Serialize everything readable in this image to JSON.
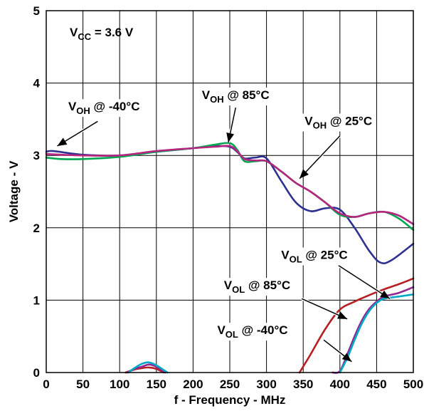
{
  "chart_data": {
    "type": "line",
    "xlabel": "f - Frequency - MHz",
    "ylabel": "Voltage - V",
    "xlim": [
      0,
      500
    ],
    "ylim": [
      0,
      5
    ],
    "x_ticks": [
      "0",
      "50",
      "100",
      "150",
      "200",
      "250",
      "300",
      "350",
      "400",
      "450",
      "500"
    ],
    "y_ticks": [
      "0",
      "1",
      "2",
      "3",
      "4",
      "5"
    ],
    "grid": true,
    "condition": {
      "prefix": "V",
      "sub": "CC",
      "suffix": " = 3.6 V"
    },
    "series": [
      {
        "name": "VOH @ -40°C",
        "color": "#2E3192",
        "x": [
          0,
          10,
          50,
          100,
          150,
          200,
          230,
          250,
          260,
          270,
          285,
          300,
          320,
          340,
          360,
          380,
          400,
          420,
          440,
          455,
          470,
          500
        ],
        "y": [
          3.05,
          3.06,
          3.01,
          3.0,
          3.05,
          3.1,
          3.13,
          3.12,
          3.05,
          2.96,
          2.97,
          2.96,
          2.65,
          2.35,
          2.23,
          2.27,
          2.25,
          2.0,
          1.68,
          1.52,
          1.55,
          1.78
        ]
      },
      {
        "name": "VOH @ 85°C",
        "color": "#00A651",
        "x": [
          0,
          20,
          50,
          100,
          150,
          200,
          230,
          250,
          260,
          270,
          285,
          300,
          320,
          340,
          360,
          380,
          400,
          420,
          440,
          460,
          480,
          500
        ],
        "y": [
          2.97,
          2.95,
          2.95,
          2.98,
          3.05,
          3.1,
          3.15,
          3.17,
          3.08,
          2.92,
          2.92,
          2.92,
          2.78,
          2.62,
          2.5,
          2.35,
          2.18,
          2.15,
          2.2,
          2.22,
          2.13,
          1.97
        ]
      },
      {
        "name": "VOH @ 25°C",
        "color": "#B5267E",
        "x": [
          0,
          20,
          50,
          100,
          150,
          200,
          230,
          250,
          260,
          270,
          285,
          300,
          320,
          340,
          360,
          380,
          400,
          420,
          440,
          460,
          480,
          500
        ],
        "y": [
          3.02,
          3.01,
          3.0,
          3.0,
          3.06,
          3.1,
          3.12,
          3.13,
          3.06,
          2.95,
          2.93,
          2.92,
          2.78,
          2.62,
          2.5,
          2.35,
          2.2,
          2.15,
          2.2,
          2.22,
          2.17,
          2.05
        ]
      },
      {
        "name": "VOL @ 85°C",
        "color": "#B52025",
        "x": [
          108,
          120,
          130,
          140,
          150,
          160,
          345,
          360,
          380,
          400,
          420,
          440,
          460,
          480,
          500
        ],
        "y": [
          0.0,
          0.04,
          0.06,
          0.07,
          0.05,
          0.0,
          0.0,
          0.25,
          0.6,
          0.87,
          0.98,
          1.07,
          1.15,
          1.22,
          1.3
        ]
      },
      {
        "name": "VOL @ 25°C",
        "color": "#92278F",
        "x": [
          110,
          120,
          130,
          140,
          150,
          162,
          390,
          400,
          410,
          420,
          430,
          440,
          450,
          460,
          480,
          500
        ],
        "y": [
          0.0,
          0.05,
          0.08,
          0.11,
          0.08,
          0.0,
          0.0,
          0.02,
          0.25,
          0.5,
          0.72,
          0.88,
          0.98,
          1.05,
          1.1,
          1.18
        ]
      },
      {
        "name": "VOL @ -40°C",
        "color": "#00A9C5",
        "x": [
          112,
          120,
          130,
          140,
          150,
          165,
          400,
          410,
          420,
          430,
          440,
          450,
          460,
          480,
          500
        ],
        "y": [
          0.0,
          0.06,
          0.12,
          0.14,
          0.1,
          0.0,
          0.0,
          0.2,
          0.45,
          0.68,
          0.85,
          0.96,
          1.02,
          1.05,
          1.08
        ]
      }
    ],
    "annotations": [
      {
        "main": "V",
        "sub": "OH",
        "rest": " @ -40°C",
        "tx": 30,
        "ty": 3.62,
        "ax1": 70,
        "ay1": 3.47,
        "ax2": 15,
        "ay2": 3.13
      },
      {
        "main": "V",
        "sub": "OH",
        "rest": " @ 85°C",
        "tx": 212,
        "ty": 3.78,
        "ax1": 258,
        "ay1": 3.66,
        "ax2": 248,
        "ay2": 3.18
      },
      {
        "main": "V",
        "sub": "OH",
        "rest": " @ 25°C",
        "tx": 352,
        "ty": 3.42,
        "ax1": 400,
        "ay1": 3.27,
        "ax2": 345,
        "ay2": 2.68
      },
      {
        "main": "V",
        "sub": "OL",
        "rest": " @ 25°C",
        "tx": 320,
        "ty": 1.57,
        "ax1": 398,
        "ay1": 1.48,
        "ax2": 468,
        "ay2": 1.02
      },
      {
        "main": "V",
        "sub": "OL",
        "rest": " @ 85°C",
        "tx": 242,
        "ty": 1.15,
        "ax1": 348,
        "ay1": 1.02,
        "ax2": 410,
        "ay2": 0.74
      },
      {
        "main": "V",
        "sub": "OL",
        "rest": " @ -40°C",
        "tx": 233,
        "ty": 0.53,
        "ax1": 378,
        "ay1": 0.45,
        "ax2": 416,
        "ay2": 0.15
      }
    ]
  }
}
